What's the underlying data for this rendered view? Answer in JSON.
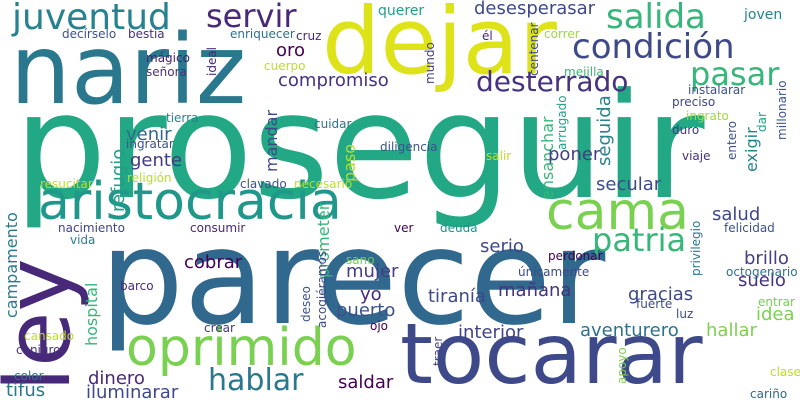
{
  "wordcloud": {
    "background": "#ffffff",
    "words": [
      {
        "text": "proseguir",
        "color": "#22a884"
      },
      {
        "text": "parecer",
        "color": "#31688e"
      },
      {
        "text": "nariz",
        "color": "#2a788e"
      },
      {
        "text": "dejar",
        "color": "#dde318"
      },
      {
        "text": "ley",
        "color": "#482878"
      },
      {
        "text": "tocarar",
        "color": "#3e4989"
      },
      {
        "text": "oprimido",
        "color": "#7ad151"
      },
      {
        "text": "aristocracia",
        "color": "#1f988b"
      },
      {
        "text": "cama",
        "color": "#7ad151"
      },
      {
        "text": "juventud",
        "color": "#26828e"
      },
      {
        "text": "condición",
        "color": "#3e4989"
      },
      {
        "text": "salida",
        "color": "#35b779"
      },
      {
        "text": "servir",
        "color": "#482878"
      },
      {
        "text": "pasar",
        "color": "#35b779"
      },
      {
        "text": "patria",
        "color": "#35b779"
      },
      {
        "text": "desterrado",
        "color": "#46327e"
      },
      {
        "text": "hablar",
        "color": "#2a788e"
      },
      {
        "text": "compromiso",
        "color": "#46327e"
      },
      {
        "text": "desesperasar",
        "color": "#3e4989"
      },
      {
        "text": "querer",
        "color": "#1fa187"
      },
      {
        "text": "joven",
        "color": "#26828e"
      },
      {
        "text": "oro",
        "color": "#440154"
      },
      {
        "text": "refugio",
        "color": "#1f9e89"
      },
      {
        "text": "venir",
        "color": "#31688e"
      },
      {
        "text": "gente",
        "color": "#443983"
      },
      {
        "text": "mandar",
        "color": "#3e4989"
      },
      {
        "text": "cuidar",
        "color": "#2c728e"
      },
      {
        "text": "paso",
        "color": "#b5de2b"
      },
      {
        "text": "diligencia",
        "color": "#3b528b"
      },
      {
        "text": "ensanchar",
        "color": "#35b779"
      },
      {
        "text": "seguida",
        "color": "#26828e"
      },
      {
        "text": "exigir",
        "color": "#26828e"
      },
      {
        "text": "ingratar",
        "color": "#3b528b"
      },
      {
        "text": "tierra",
        "color": "#26828e"
      },
      {
        "text": "religión",
        "color": "#b5de2b"
      },
      {
        "text": "resucitar",
        "color": "#bddf26"
      },
      {
        "text": "clavado",
        "color": "#3b528b"
      },
      {
        "text": "necesario",
        "color": "#bddf26"
      },
      {
        "text": "poner",
        "color": "#433e85"
      },
      {
        "text": "secular",
        "color": "#3e4989"
      },
      {
        "text": "salud",
        "color": "#3e4989"
      },
      {
        "text": "serio",
        "color": "#3e4989"
      },
      {
        "text": "campamento",
        "color": "#2a788e"
      },
      {
        "text": "nacimiento",
        "color": "#414487"
      },
      {
        "text": "consumir",
        "color": "#482878"
      },
      {
        "text": "vida",
        "color": "#26828e"
      },
      {
        "text": "cobrar",
        "color": "#440154"
      },
      {
        "text": "prometer",
        "color": "#35b779"
      },
      {
        "text": "mujer",
        "color": "#433e85"
      },
      {
        "text": "yo",
        "color": "#482878"
      },
      {
        "text": "puerto",
        "color": "#3b528b"
      },
      {
        "text": "tiranía",
        "color": "#3e4989"
      },
      {
        "text": "mañana",
        "color": "#46327e"
      },
      {
        "text": "gracias",
        "color": "#3e4989"
      },
      {
        "text": "suelo",
        "color": "#46327e"
      },
      {
        "text": "brillo",
        "color": "#433e85"
      },
      {
        "text": "idea",
        "color": "#7ad151"
      },
      {
        "text": "hallar",
        "color": "#7ad151"
      },
      {
        "text": "aventurero",
        "color": "#2c728e"
      },
      {
        "text": "interior",
        "color": "#414487"
      },
      {
        "text": "hospital",
        "color": "#35b779"
      },
      {
        "text": "barco",
        "color": "#482878"
      },
      {
        "text": "dinero",
        "color": "#482878"
      },
      {
        "text": "iluminarar",
        "color": "#3e4989"
      },
      {
        "text": "saldar",
        "color": "#440154"
      },
      {
        "text": "tifus",
        "color": "#2a788e"
      },
      {
        "text": "color",
        "color": "#2a788e"
      },
      {
        "text": "conjuro",
        "color": "#46327e"
      },
      {
        "text": "cansado",
        "color": "#bddf26"
      },
      {
        "text": "crear",
        "color": "#443983"
      },
      {
        "text": "ojo",
        "color": "#440154"
      },
      {
        "text": "deseo",
        "color": "#3b528b"
      },
      {
        "text": "acogiéramos",
        "color": "#3e4989"
      },
      {
        "text": "sano",
        "color": "#6ece58"
      },
      {
        "text": "ver",
        "color": "#440154"
      },
      {
        "text": "deuda",
        "color": "#21918c"
      },
      {
        "text": "perdonar",
        "color": "#440154"
      },
      {
        "text": "únicamente",
        "color": "#3e4989"
      },
      {
        "text": "fuerte",
        "color": "#3e4989"
      },
      {
        "text": "traer",
        "color": "#404688"
      },
      {
        "text": "apoyo",
        "color": "#7ad151"
      },
      {
        "text": "luz",
        "color": "#3e4989"
      },
      {
        "text": "entrar",
        "color": "#73d056"
      },
      {
        "text": "octogenario",
        "color": "#2c728e"
      },
      {
        "text": "privilegio",
        "color": "#2a788e"
      },
      {
        "text": "felicidad",
        "color": "#3b528b"
      },
      {
        "text": "clase",
        "color": "#bddf26"
      },
      {
        "text": "cariño",
        "color": "#31688e"
      },
      {
        "text": "decírselo",
        "color": "#3b528b"
      },
      {
        "text": "bestia",
        "color": "#46327e"
      },
      {
        "text": "mágico",
        "color": "#481f70"
      },
      {
        "text": "señora",
        "color": "#46327e"
      },
      {
        "text": "ideal",
        "color": "#482878"
      },
      {
        "text": "enriquecer",
        "color": "#2c728e"
      },
      {
        "text": "cruz",
        "color": "#482878"
      },
      {
        "text": "cuerpo",
        "color": "#bddf26"
      },
      {
        "text": "mundo",
        "color": "#433e85"
      },
      {
        "text": "él",
        "color": "#482878"
      },
      {
        "text": "centenar",
        "color": "#3e4989"
      },
      {
        "text": "correr",
        "color": "#9fda3a"
      },
      {
        "text": "mejilla",
        "color": "#35b779"
      },
      {
        "text": "instalarar",
        "color": "#3b528b"
      },
      {
        "text": "preciso",
        "color": "#414487"
      },
      {
        "text": "ingrato",
        "color": "#9fda3a"
      },
      {
        "text": "duro",
        "color": "#443983"
      },
      {
        "text": "arrugado",
        "color": "#1fa187"
      },
      {
        "text": "salir",
        "color": "#bddf26"
      },
      {
        "text": "viaje",
        "color": "#46327e"
      },
      {
        "text": "entero",
        "color": "#3b528b"
      },
      {
        "text": "dar",
        "color": "#1fa187"
      },
      {
        "text": "millonario",
        "color": "#3b528b"
      }
    ]
  }
}
